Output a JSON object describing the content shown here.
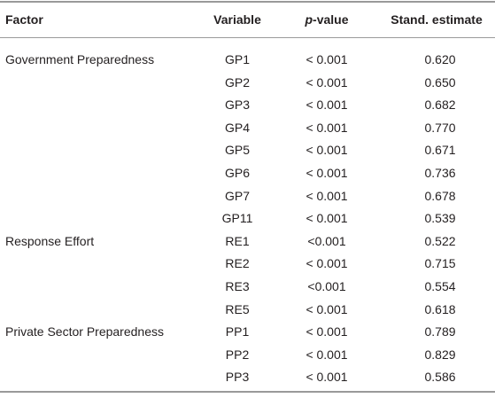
{
  "table": {
    "header": [
      "Factor",
      "Variable",
      {
        "italic": "p",
        "text": "-value"
      },
      "Stand. estimate"
    ],
    "groups": [
      {
        "factor": "Government Preparedness",
        "rows": [
          [
            "GP1",
            "< 0.001",
            "0.620"
          ],
          [
            "GP2",
            "< 0.001",
            "0.650"
          ],
          [
            "GP3",
            "< 0.001",
            "0.682"
          ],
          [
            "GP4",
            "< 0.001",
            "0.770"
          ],
          [
            "GP5",
            "< 0.001",
            "0.671"
          ],
          [
            "GP6",
            "< 0.001",
            "0.736"
          ],
          [
            "GP7",
            "< 0.001",
            "0.678"
          ],
          [
            "GP11",
            "< 0.001",
            "0.539"
          ]
        ]
      },
      {
        "factor": "Response Effort",
        "rows": [
          [
            "RE1",
            "<0.001",
            "0.522"
          ],
          [
            "RE2",
            "< 0.001",
            "0.715"
          ],
          [
            "RE3",
            "<0.001",
            "0.554"
          ],
          [
            "RE5",
            "< 0.001",
            "0.618"
          ]
        ]
      },
      {
        "factor": "Private Sector Preparedness",
        "rows": [
          [
            "PP1",
            "< 0.001",
            "0.789"
          ],
          [
            "PP2",
            "< 0.001",
            "0.829"
          ],
          [
            "PP3",
            "< 0.001",
            "0.586"
          ]
        ]
      }
    ]
  }
}
